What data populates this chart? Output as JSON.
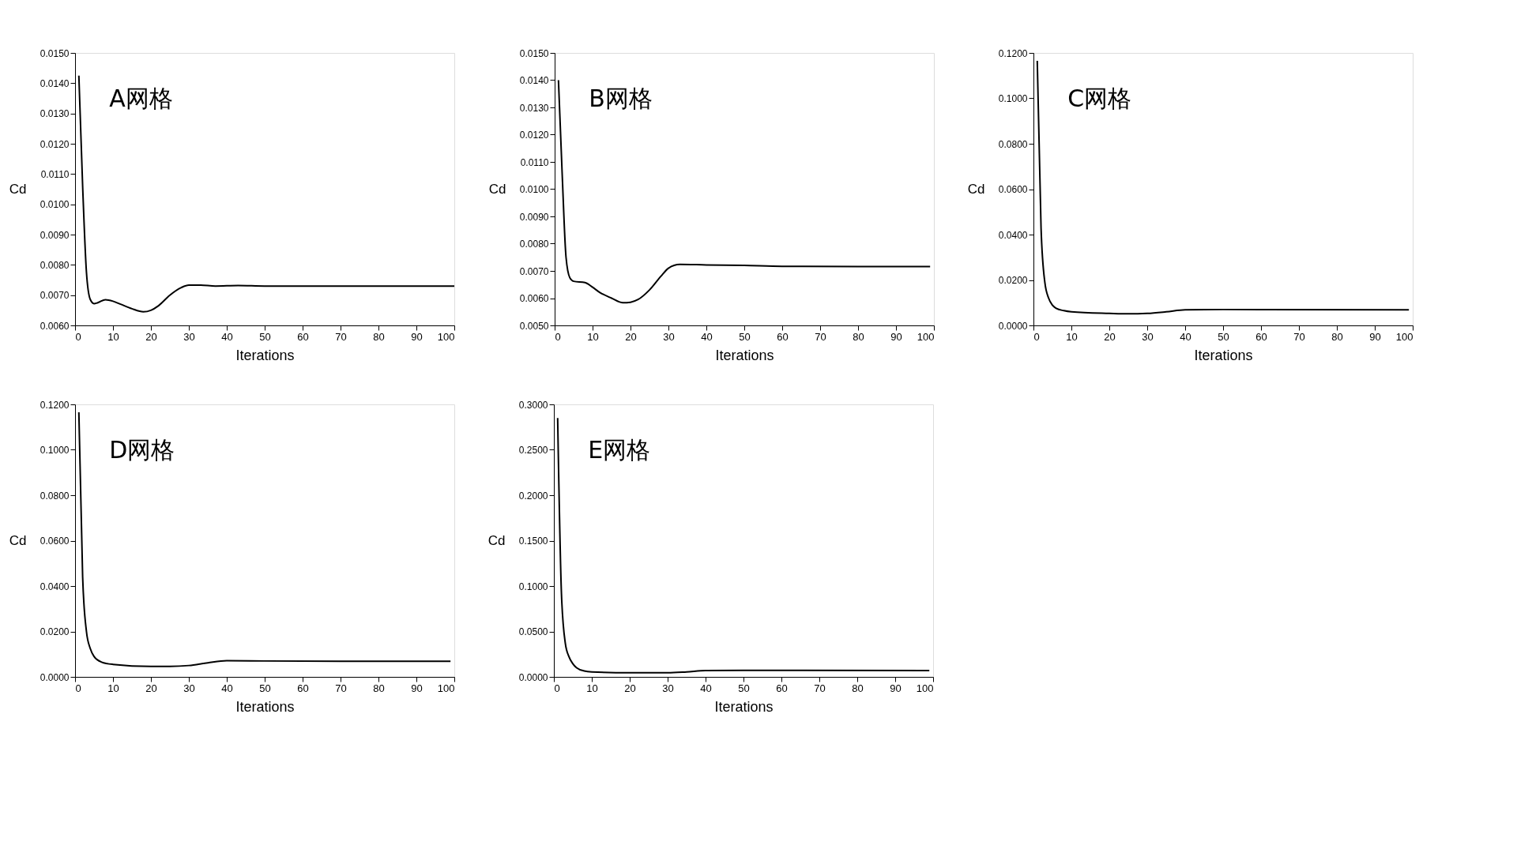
{
  "chart_data": [
    {
      "type": "line",
      "title": "A网格",
      "xlabel": "Iterations",
      "ylabel": "Cd",
      "grid": false,
      "legend": false,
      "xlim": [
        0,
        100
      ],
      "xticks": [
        0,
        10,
        20,
        30,
        40,
        50,
        60,
        70,
        80,
        90,
        100
      ],
      "ylim": [
        0.006,
        0.015
      ],
      "yticks": [
        {
          "value": 0.006,
          "label": "0.0060"
        },
        {
          "value": 0.007,
          "label": "0.0070"
        },
        {
          "value": 0.008,
          "label": "0.0080"
        },
        {
          "value": 0.009,
          "label": "0.0090"
        },
        {
          "value": 0.01,
          "label": "0.0100"
        },
        {
          "value": 0.011,
          "label": "0.0110"
        },
        {
          "value": 0.012,
          "label": "0.0120"
        },
        {
          "value": 0.013,
          "label": "0.0130"
        },
        {
          "value": 0.014,
          "label": "0.0140"
        },
        {
          "value": 0.015,
          "label": "0.0150"
        }
      ],
      "x": [
        1,
        2,
        3,
        4,
        5,
        6,
        8,
        10,
        12,
        15,
        18,
        20,
        22,
        25,
        28,
        30,
        33,
        37,
        43,
        50,
        70,
        100
      ],
      "series": [
        {
          "color": "#000000",
          "values": [
            0.01425,
            0.0106,
            0.00776,
            0.00686,
            0.00672,
            0.00675,
            0.00685,
            0.0068,
            0.0067,
            0.00655,
            0.00645,
            0.0065,
            0.00665,
            0.007,
            0.00725,
            0.00733,
            0.00733,
            0.0073,
            0.00732,
            0.0073,
            0.0073,
            0.0073
          ]
        }
      ]
    },
    {
      "type": "line",
      "title": "B网格",
      "xlabel": "Iterations",
      "ylabel": "Cd",
      "grid": false,
      "legend": false,
      "xlim": [
        0,
        100
      ],
      "xticks": [
        0,
        10,
        20,
        30,
        40,
        50,
        60,
        70,
        80,
        90,
        100
      ],
      "ylim": [
        0.005,
        0.015
      ],
      "yticks": [
        {
          "value": 0.005,
          "label": "0.0050"
        },
        {
          "value": 0.006,
          "label": "0.0060"
        },
        {
          "value": 0.007,
          "label": "0.0070"
        },
        {
          "value": 0.008,
          "label": "0.0080"
        },
        {
          "value": 0.009,
          "label": "0.0090"
        },
        {
          "value": 0.01,
          "label": "0.0100"
        },
        {
          "value": 0.011,
          "label": "0.0110"
        },
        {
          "value": 0.012,
          "label": "0.0120"
        },
        {
          "value": 0.013,
          "label": "0.0130"
        },
        {
          "value": 0.014,
          "label": "0.0140"
        },
        {
          "value": 0.015,
          "label": "0.0150"
        }
      ],
      "x": [
        1,
        2,
        3,
        4,
        5,
        8,
        10,
        12,
        15,
        18,
        20,
        22,
        25,
        28,
        30,
        33,
        40,
        50,
        60,
        80,
        99
      ],
      "series": [
        {
          "color": "#000000",
          "values": [
            0.014,
            0.0105,
            0.0075,
            0.00675,
            0.00662,
            0.00657,
            0.0064,
            0.0062,
            0.006,
            0.00583,
            0.00585,
            0.00595,
            0.0063,
            0.0068,
            0.0071,
            0.00724,
            0.00722,
            0.0072,
            0.00717,
            0.00716,
            0.00716
          ]
        }
      ]
    },
    {
      "type": "line",
      "title": "C网格",
      "xlabel": "Iterations",
      "ylabel": "Cd",
      "grid": false,
      "legend": false,
      "xlim": [
        0,
        100
      ],
      "xticks": [
        0,
        10,
        20,
        30,
        40,
        50,
        60,
        70,
        80,
        90,
        100
      ],
      "ylim": [
        0,
        0.12
      ],
      "yticks": [
        {
          "value": 0,
          "label": "0.0000"
        },
        {
          "value": 0.02,
          "label": "0.0200"
        },
        {
          "value": 0.04,
          "label": "0.0400"
        },
        {
          "value": 0.06,
          "label": "0.0600"
        },
        {
          "value": 0.08,
          "label": "0.0800"
        },
        {
          "value": 0.1,
          "label": "0.1000"
        },
        {
          "value": 0.12,
          "label": "0.1200"
        }
      ],
      "x": [
        1,
        2,
        3,
        4,
        5,
        6,
        8,
        10,
        20,
        25,
        30,
        35,
        40,
        50,
        60,
        99
      ],
      "series": [
        {
          "color": "#000000",
          "values": [
            0.1165,
            0.043,
            0.019,
            0.012,
            0.0089,
            0.0075,
            0.0065,
            0.006,
            0.0053,
            0.0051,
            0.0053,
            0.006,
            0.0069,
            0.007,
            0.007,
            0.0069
          ]
        }
      ]
    },
    {
      "type": "line",
      "title": "D网格",
      "xlabel": "Iterations",
      "ylabel": "Cd",
      "grid": false,
      "legend": false,
      "xlim": [
        0,
        100
      ],
      "xticks": [
        0,
        10,
        20,
        30,
        40,
        50,
        60,
        70,
        80,
        90,
        100
      ],
      "ylim": [
        0,
        0.12
      ],
      "yticks": [
        {
          "value": 0,
          "label": "0.0000"
        },
        {
          "value": 0.02,
          "label": "0.0200"
        },
        {
          "value": 0.04,
          "label": "0.0400"
        },
        {
          "value": 0.06,
          "label": "0.0600"
        },
        {
          "value": 0.08,
          "label": "0.0800"
        },
        {
          "value": 0.1,
          "label": "0.1000"
        },
        {
          "value": 0.12,
          "label": "0.1200"
        }
      ],
      "x": [
        1,
        2,
        3,
        4,
        5,
        7,
        10,
        20,
        25,
        30,
        35,
        40,
        50,
        70,
        99
      ],
      "series": [
        {
          "color": "#000000",
          "values": [
            0.1165,
            0.044,
            0.02,
            0.0125,
            0.009,
            0.0065,
            0.0055,
            0.0046,
            0.0046,
            0.005,
            0.0062,
            0.0071,
            0.007,
            0.0069,
            0.0069
          ]
        }
      ]
    },
    {
      "type": "line",
      "title": "E网格",
      "xlabel": "Iterations",
      "ylabel": "Cd",
      "grid": false,
      "legend": false,
      "xlim": [
        0,
        100
      ],
      "xticks": [
        0,
        10,
        20,
        30,
        40,
        50,
        60,
        70,
        80,
        90,
        100
      ],
      "ylim": [
        0,
        0.3
      ],
      "yticks": [
        {
          "value": 0,
          "label": "0.0000"
        },
        {
          "value": 0.05,
          "label": "0.0500"
        },
        {
          "value": 0.1,
          "label": "0.1000"
        },
        {
          "value": 0.15,
          "label": "0.1500"
        },
        {
          "value": 0.2,
          "label": "0.2000"
        },
        {
          "value": 0.25,
          "label": "0.2500"
        },
        {
          "value": 0.3,
          "label": "0.3000"
        }
      ],
      "x": [
        1,
        2,
        3,
        4,
        5,
        6,
        8,
        10,
        20,
        30,
        35,
        40,
        50,
        99
      ],
      "series": [
        {
          "color": "#000000",
          "values": [
            0.285,
            0.0917,
            0.0376,
            0.022,
            0.0145,
            0.01,
            0.0065,
            0.0055,
            0.0045,
            0.0045,
            0.0055,
            0.007,
            0.0072,
            0.007
          ]
        }
      ]
    }
  ]
}
